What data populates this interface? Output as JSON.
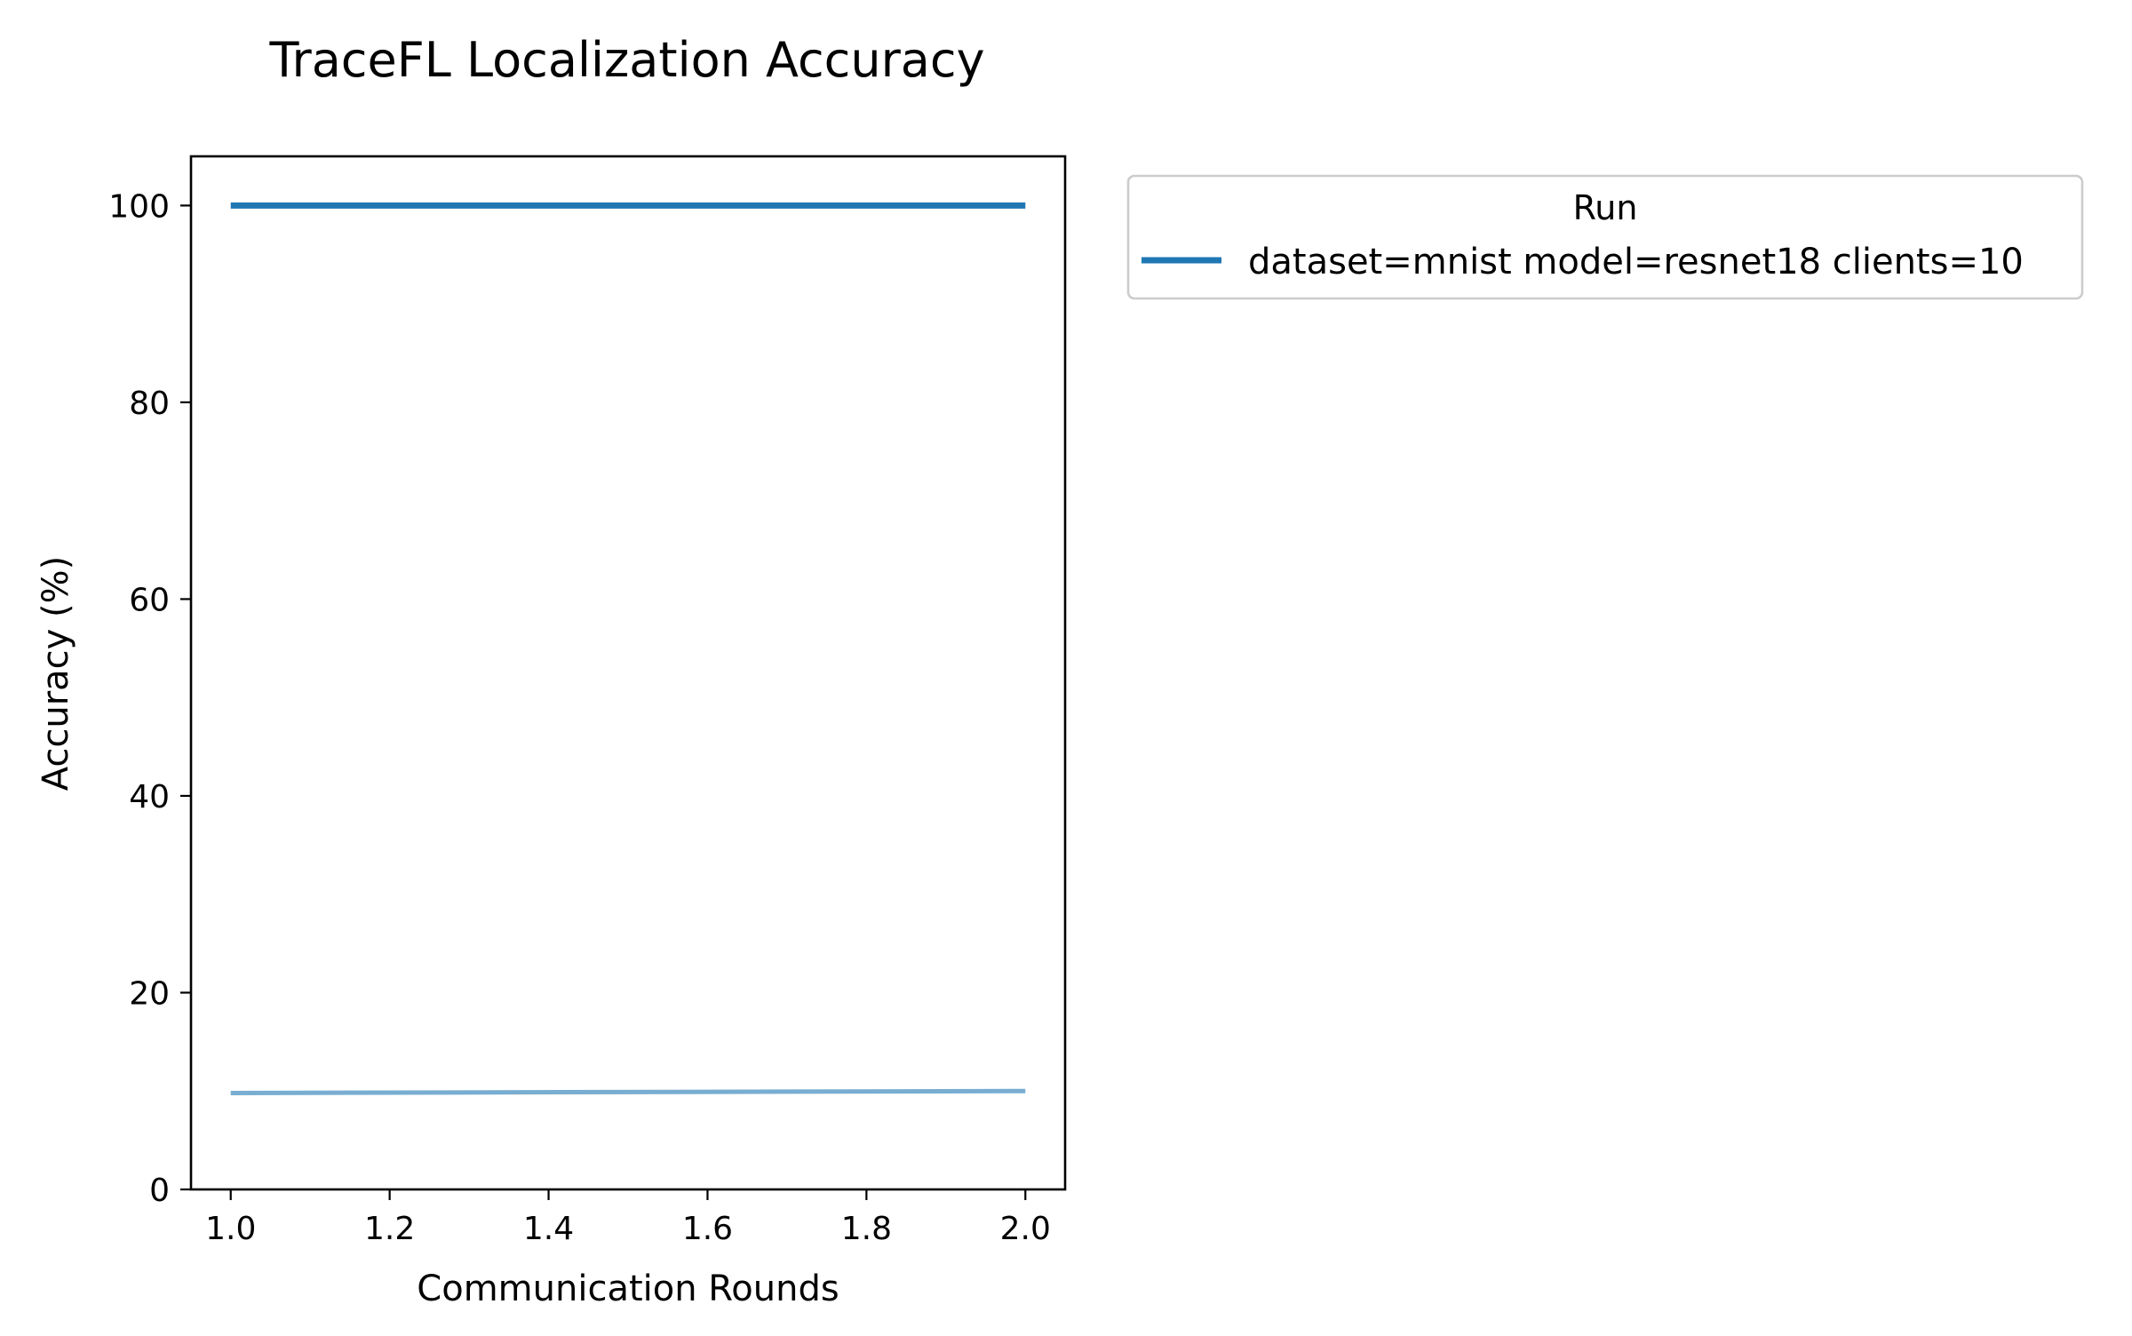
{
  "chart_data": {
    "type": "line",
    "title": "TraceFL Localization Accuracy",
    "xlabel": "Communication Rounds",
    "ylabel": "Accuracy (%)",
    "xlim": [
      0.95,
      2.05
    ],
    "ylim": [
      0,
      105
    ],
    "x_ticks": [
      1.0,
      1.2,
      1.4,
      1.6,
      1.8,
      2.0
    ],
    "x_tick_labels": [
      "1.0",
      "1.2",
      "1.4",
      "1.6",
      "1.8",
      "2.0"
    ],
    "y_ticks": [
      0,
      20,
      40,
      60,
      80,
      100
    ],
    "y_tick_labels": [
      "0",
      "20",
      "40",
      "60",
      "80",
      "100"
    ],
    "grid": false,
    "legend": {
      "title": "Run",
      "placement": "outside-upper-right"
    },
    "series": [
      {
        "name": "dataset=mnist model=resnet18 clients=10",
        "x": [
          1.0,
          2.0
        ],
        "values": [
          100.0,
          100.0
        ],
        "color": "#1f77b4",
        "opacity": 1.0,
        "in_legend": true
      },
      {
        "x": [
          1.0,
          2.0
        ],
        "values": [
          9.8,
          10.0
        ],
        "color": "#1f77b4",
        "opacity": 0.6,
        "in_legend": false
      }
    ]
  }
}
